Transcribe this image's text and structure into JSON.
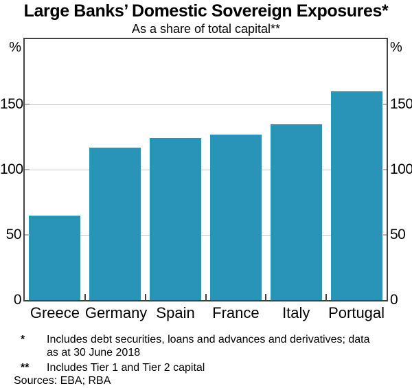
{
  "chart_data": {
    "type": "bar",
    "title": "Large Banks’ Domestic Sovereign Exposures*",
    "subtitle": "As a share of total capital**",
    "categories": [
      "Greece",
      "Germany",
      "Spain",
      "France",
      "Italy",
      "Portugal"
    ],
    "values": [
      65,
      117,
      124,
      127,
      135,
      160
    ],
    "xlabel": "",
    "ylabel": "%",
    "unit_left": "%",
    "unit_right": "%",
    "yticks": [
      0,
      50,
      100,
      150
    ],
    "ylim": [
      0,
      200
    ],
    "grid": true,
    "legend": "none",
    "bar_color": "#2a94b8"
  },
  "footnotes": [
    {
      "marker": "*",
      "lines": [
        "Includes debt securities, loans and advances and derivatives; data",
        "as at 30 June 2018"
      ]
    },
    {
      "marker": "**",
      "lines": [
        "Includes Tier 1 and Tier 2 capital"
      ]
    }
  ],
  "sources": "Sources: EBA; RBA",
  "colors": {
    "bar": "#2a94b8",
    "axis_frame": "#424242",
    "gridline": "#c9c9c9",
    "y_tick": "#b5b5b5",
    "x_tick": "#424242",
    "text": "#000000"
  }
}
